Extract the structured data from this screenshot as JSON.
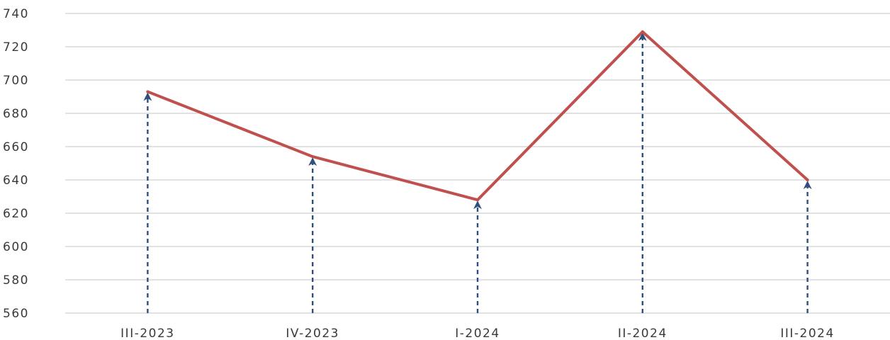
{
  "chart_data": {
    "type": "line",
    "categories": [
      "III-2023",
      "IV-2023",
      "I-2024",
      "II-2024",
      "III-2024"
    ],
    "series": [
      {
        "values": [
          693,
          654,
          628,
          729,
          640
        ]
      }
    ],
    "yticks": [
      "560",
      "580",
      "600",
      "620",
      "640",
      "660",
      "680",
      "700",
      "720",
      "740"
    ],
    "ylim": [
      560,
      740
    ],
    "grid": true,
    "line_color": "#c0504d",
    "arrow_color": "#2f4f7f",
    "grid_color": "#d9d9d9",
    "annotations": "dashed upward arrows from x-axis to each data point"
  }
}
